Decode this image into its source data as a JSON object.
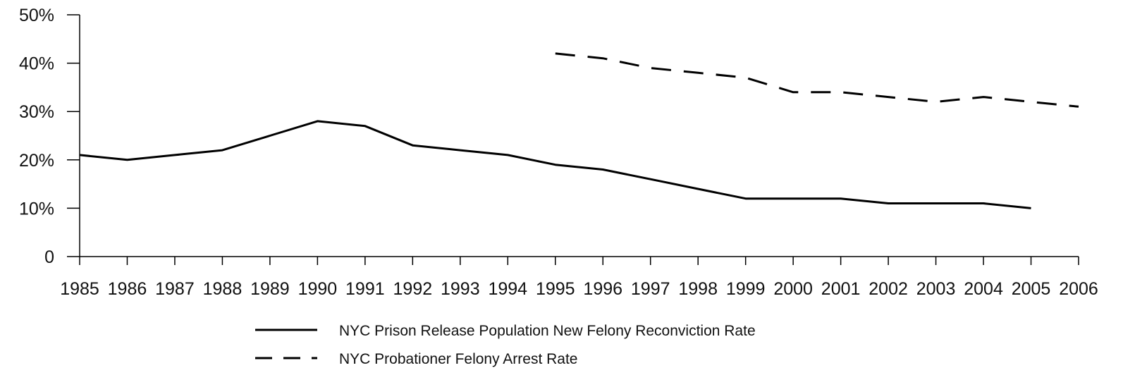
{
  "chart_data": {
    "type": "line",
    "title": "",
    "xlabel": "",
    "ylabel": "",
    "x": [
      1985,
      1986,
      1987,
      1988,
      1989,
      1990,
      1991,
      1992,
      1993,
      1994,
      1995,
      1996,
      1997,
      1998,
      1999,
      2000,
      2001,
      2002,
      2003,
      2004,
      2005,
      2006
    ],
    "x_tick_labels": [
      "1985",
      "1986",
      "1987",
      "1988",
      "1989",
      "1990",
      "1991",
      "1992",
      "1993",
      "1994",
      "1995",
      "1996",
      "1997",
      "1998",
      "1999",
      "2000",
      "2001",
      "2002",
      "2003",
      "2004",
      "2005",
      "2006"
    ],
    "ylim": [
      0,
      50
    ],
    "y_ticks": [
      0,
      10,
      20,
      30,
      40,
      50
    ],
    "y_tick_labels": [
      "0",
      "10%",
      "20%",
      "30%",
      "40%",
      "50%"
    ],
    "grid": false,
    "legend_position": "bottom",
    "series": [
      {
        "name": "NYC Prison Release Population New Felony Reconviction Rate",
        "style": "solid",
        "color": "#000000",
        "x": [
          1985,
          1986,
          1987,
          1988,
          1989,
          1990,
          1991,
          1992,
          1993,
          1994,
          1995,
          1996,
          1997,
          1998,
          1999,
          2000,
          2001,
          2002,
          2003,
          2004,
          2005
        ],
        "values": [
          21,
          20,
          21,
          22,
          25,
          28,
          27,
          23,
          22,
          21,
          19,
          18,
          16,
          14,
          12,
          12,
          12,
          11,
          11,
          11,
          10
        ]
      },
      {
        "name": "NYC Probationer Felony Arrest Rate",
        "style": "dashed",
        "color": "#000000",
        "x": [
          1995,
          1996,
          1997,
          1998,
          1999,
          2000,
          2001,
          2002,
          2003,
          2004,
          2005,
          2006
        ],
        "values": [
          42,
          41,
          39,
          38,
          37,
          34,
          34,
          33,
          32,
          33,
          32,
          31
        ]
      }
    ]
  }
}
